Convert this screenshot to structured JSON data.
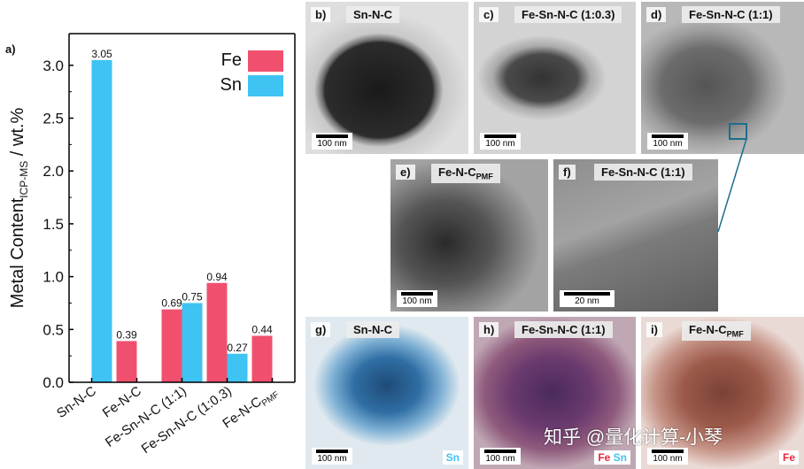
{
  "chart_data": {
    "type": "bar",
    "panel_label": "a)",
    "ylabel": "Metal Content",
    "ylabel_sub": "ICP-MS",
    "ylabel_tail": " / wt.%",
    "ylim": [
      0,
      3.3
    ],
    "yticks": [
      "0.0",
      "0.5",
      "1.0",
      "1.5",
      "2.0",
      "2.5",
      "3.0"
    ],
    "categories": [
      "Sn-N-C",
      "Fe-N-C",
      "Fe-Sn-N-C (1:1)",
      "Fe-Sn-N-C (1:0.3)",
      "Fe-N-C"
    ],
    "category_subscripts": [
      "",
      "",
      "",
      "",
      "PMF"
    ],
    "series": [
      {
        "name": "Fe",
        "color": "#f0506e",
        "values": [
          null,
          0.39,
          0.69,
          0.94,
          0.44
        ],
        "labels": [
          "",
          "0.39",
          "0.69",
          "0.94",
          "0.44"
        ]
      },
      {
        "name": "Sn",
        "color": "#3ec3f3",
        "values": [
          3.05,
          null,
          0.75,
          0.27,
          null
        ],
        "labels": [
          "3.05",
          "",
          "0.75",
          "0.27",
          ""
        ]
      }
    ],
    "legend_position": "top-right"
  },
  "panels": [
    {
      "label": "b)",
      "title": "Sn-N-C",
      "title_sub": "",
      "scale": "100 nm",
      "element": [],
      "tone": "tem1"
    },
    {
      "label": "c)",
      "title": "Fe-Sn-N-C (1:0.3)",
      "title_sub": "",
      "scale": "100 nm",
      "element": [],
      "tone": "tem2"
    },
    {
      "label": "d)",
      "title": "Fe-Sn-N-C (1:1)",
      "title_sub": "",
      "scale": "100 nm",
      "element": [],
      "tone": "tem3"
    },
    {
      "label": "e)",
      "title": "Fe-N-C",
      "title_sub": "PMF",
      "scale": "100 nm",
      "element": [],
      "tone": "tem4"
    },
    {
      "label": "f)",
      "title": "Fe-Sn-N-C (1:1)",
      "title_sub": "",
      "scale": "20 nm",
      "element": [],
      "tone": "tem5"
    },
    {
      "label": "g)",
      "title": "Sn-N-C",
      "title_sub": "",
      "scale": "100 nm",
      "element": [
        {
          "text": "Sn",
          "color": "#3ec3f3"
        }
      ],
      "tone": "map-sn"
    },
    {
      "label": "h)",
      "title": "Fe-Sn-N-C (1:1)",
      "title_sub": "",
      "scale": "100 nm",
      "element": [
        {
          "text": "Fe",
          "color": "#e5283c"
        },
        {
          "text": "Sn",
          "color": "#3ec3f3"
        }
      ],
      "tone": "map-fesn"
    },
    {
      "label": "i)",
      "title": "Fe-N-C",
      "title_sub": "PMF",
      "scale": "100 nm",
      "element": [
        {
          "text": "Fe",
          "color": "#e5283c"
        }
      ],
      "tone": "map-fe"
    }
  ],
  "watermark": "知乎 @量化计算-小琴"
}
